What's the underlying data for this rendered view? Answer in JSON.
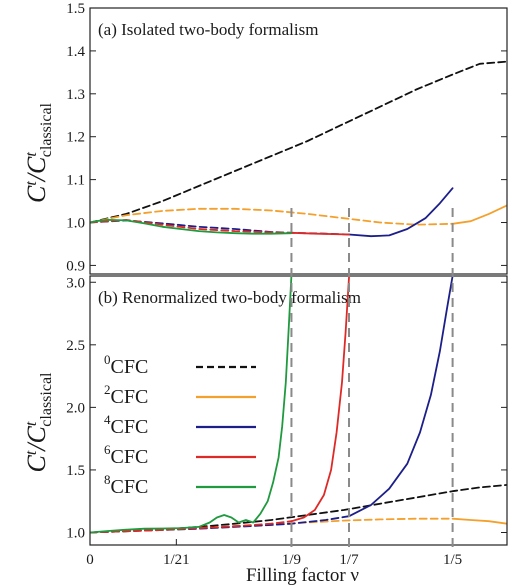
{
  "chart_data": [
    {
      "panel": "a",
      "type": "line",
      "title": "(a) Isolated two-body formalism",
      "ylabel": "C^t/C^t_classical",
      "ylim": [
        0.88,
        1.5
      ],
      "yticks": [
        "0.9",
        "1.0",
        "1.1",
        "1.2",
        "1.3",
        "1.4",
        "1.5"
      ],
      "xlim": [
        0,
        0.23
      ],
      "series": [
        {
          "name": "0CFC",
          "color": "#111111",
          "dash": "dashed",
          "x": [
            0,
            0.02,
            0.04,
            0.06,
            0.08,
            0.1,
            0.12,
            0.14,
            0.16,
            0.18,
            0.2,
            0.215,
            0.23
          ],
          "y": [
            1.0,
            1.02,
            1.05,
            1.085,
            1.12,
            1.155,
            1.19,
            1.23,
            1.27,
            1.31,
            1.345,
            1.37,
            1.375
          ]
        },
        {
          "name": "2CFC",
          "color": "#f4a02c",
          "dash": "dashed",
          "x": [
            0,
            0.02,
            0.04,
            0.06,
            0.08,
            0.1,
            0.12,
            0.14,
            0.16,
            0.18,
            0.2
          ],
          "y": [
            1.0,
            1.017,
            1.027,
            1.032,
            1.032,
            1.028,
            1.02,
            1.01,
            1.0,
            0.995,
            0.997
          ]
        },
        {
          "name": "2CFC",
          "color": "#f4a02c",
          "dash": "solid",
          "x": [
            0.2,
            0.21,
            0.22,
            0.23
          ],
          "y": [
            0.997,
            1.003,
            1.02,
            1.04
          ]
        },
        {
          "name": "4CFC",
          "color": "#1c1f8a",
          "dash": "dashed",
          "x": [
            0,
            0.02,
            0.04,
            0.06,
            0.08,
            0.1,
            0.1111,
            0.13,
            0.1429
          ],
          "y": [
            1.0,
            1.005,
            0.998,
            0.99,
            0.985,
            0.978,
            0.976,
            0.974,
            0.972
          ]
        },
        {
          "name": "4CFC",
          "color": "#1c1f8a",
          "dash": "solid",
          "x": [
            0.1429,
            0.155,
            0.165,
            0.175,
            0.185,
            0.193,
            0.2
          ],
          "y": [
            0.972,
            0.968,
            0.97,
            0.985,
            1.01,
            1.045,
            1.08
          ]
        },
        {
          "name": "6CFC",
          "color": "#de2a26",
          "dash": "dashed",
          "x": [
            0,
            0.02,
            0.04,
            0.06,
            0.08,
            0.1,
            0.1111
          ],
          "y": [
            1.0,
            1.006,
            0.995,
            0.985,
            0.98,
            0.977,
            0.976
          ]
        },
        {
          "name": "6CFC",
          "color": "#de2a26",
          "dash": "solid",
          "x": [
            0.1111,
            0.125,
            0.1429
          ],
          "y": [
            0.976,
            0.974,
            0.972
          ]
        },
        {
          "name": "8CFC",
          "color": "#1f9a3e",
          "dash": "solid",
          "x": [
            0,
            0.005,
            0.01,
            0.02,
            0.03,
            0.04,
            0.05,
            0.06,
            0.07,
            0.08,
            0.09,
            0.1,
            0.1111
          ],
          "y": [
            1.0,
            1.004,
            1.006,
            1.005,
            0.998,
            0.99,
            0.985,
            0.98,
            0.977,
            0.975,
            0.974,
            0.974,
            0.975
          ]
        }
      ]
    },
    {
      "panel": "b",
      "type": "line",
      "title": "(b) Renormalized two-body formalism",
      "ylabel": "C^t/C^t_classical",
      "xlabel": "Filling factor ν",
      "ylim": [
        0.9,
        3.05
      ],
      "yticks": [
        "1.0",
        "1.5",
        "2.0",
        "2.5",
        "3.0"
      ],
      "xlim": [
        0,
        0.23
      ],
      "xticks": [
        {
          "v": 0,
          "label": "0"
        },
        {
          "v": 0.047619,
          "label": "1/21"
        },
        {
          "v": 0.111111,
          "label": "1/9"
        },
        {
          "v": 0.142857,
          "label": "1/7"
        },
        {
          "v": 0.2,
          "label": "1/5"
        }
      ],
      "vlines": [
        0.111111,
        0.142857,
        0.2
      ],
      "legend": [
        {
          "sup": "0",
          "label": "CFC",
          "color": "#111111",
          "dash": "dashed"
        },
        {
          "sup": "2",
          "label": "CFC",
          "color": "#f4a02c",
          "dash": "solid"
        },
        {
          "sup": "4",
          "label": "CFC",
          "color": "#1c1f8a",
          "dash": "solid"
        },
        {
          "sup": "6",
          "label": "CFC",
          "color": "#de2a26",
          "dash": "solid"
        },
        {
          "sup": "8",
          "label": "CFC",
          "color": "#1f9a3e",
          "dash": "solid"
        }
      ],
      "series": [
        {
          "name": "0CFC",
          "color": "#111111",
          "dash": "dashed",
          "x": [
            0,
            0.02,
            0.04,
            0.06,
            0.08,
            0.1,
            0.12,
            0.14,
            0.16,
            0.18,
            0.2,
            0.215,
            0.23
          ],
          "y": [
            1.0,
            1.01,
            1.025,
            1.045,
            1.07,
            1.1,
            1.14,
            1.18,
            1.23,
            1.28,
            1.33,
            1.36,
            1.38
          ]
        },
        {
          "name": "2CFC",
          "color": "#f4a02c",
          "dash": "dashed",
          "x": [
            0,
            0.02,
            0.04,
            0.06,
            0.08,
            0.1,
            0.12,
            0.14,
            0.16,
            0.18,
            0.2
          ],
          "y": [
            1.0,
            1.01,
            1.022,
            1.035,
            1.05,
            1.065,
            1.08,
            1.095,
            1.105,
            1.11,
            1.11
          ]
        },
        {
          "name": "2CFC",
          "color": "#f4a02c",
          "dash": "solid",
          "x": [
            0.2,
            0.21,
            0.22,
            0.23
          ],
          "y": [
            1.11,
            1.1,
            1.09,
            1.07
          ]
        },
        {
          "name": "4CFC",
          "color": "#1c1f8a",
          "dash": "dashed",
          "x": [
            0,
            0.02,
            0.04,
            0.06,
            0.08,
            0.1,
            0.1111,
            0.13,
            0.1429
          ],
          "y": [
            1.0,
            1.01,
            1.02,
            1.03,
            1.045,
            1.06,
            1.07,
            1.1,
            1.13
          ]
        },
        {
          "name": "4CFC",
          "color": "#1c1f8a",
          "dash": "solid",
          "x": [
            0.1429,
            0.155,
            0.165,
            0.175,
            0.182,
            0.188,
            0.193,
            0.197,
            0.2
          ],
          "y": [
            1.13,
            1.22,
            1.35,
            1.55,
            1.8,
            2.1,
            2.45,
            2.8,
            3.05
          ]
        },
        {
          "name": "6CFC",
          "color": "#de2a26",
          "dash": "dashed",
          "x": [
            0,
            0.02,
            0.04,
            0.06,
            0.08,
            0.1,
            0.1111
          ],
          "y": [
            1.0,
            1.01,
            1.02,
            1.035,
            1.05,
            1.07,
            1.09
          ]
        },
        {
          "name": "6CFC",
          "color": "#de2a26",
          "dash": "solid",
          "x": [
            0.1111,
            0.118,
            0.124,
            0.129,
            0.133,
            0.136,
            0.139,
            0.141,
            0.1429
          ],
          "y": [
            1.09,
            1.12,
            1.18,
            1.3,
            1.5,
            1.8,
            2.2,
            2.6,
            3.05
          ]
        },
        {
          "name": "8CFC",
          "color": "#1f9a3e",
          "dash": "solid",
          "x": [
            0,
            0.01,
            0.02,
            0.03,
            0.04,
            0.05,
            0.06,
            0.066,
            0.07,
            0.074,
            0.078,
            0.082,
            0.086,
            0.09,
            0.094,
            0.098,
            0.101,
            0.104,
            0.106,
            0.108,
            0.1095,
            0.1111
          ],
          "y": [
            1.0,
            1.012,
            1.022,
            1.03,
            1.032,
            1.035,
            1.045,
            1.08,
            1.12,
            1.14,
            1.12,
            1.08,
            1.1,
            1.08,
            1.15,
            1.25,
            1.4,
            1.6,
            1.85,
            2.2,
            2.6,
            3.05
          ]
        }
      ]
    }
  ]
}
